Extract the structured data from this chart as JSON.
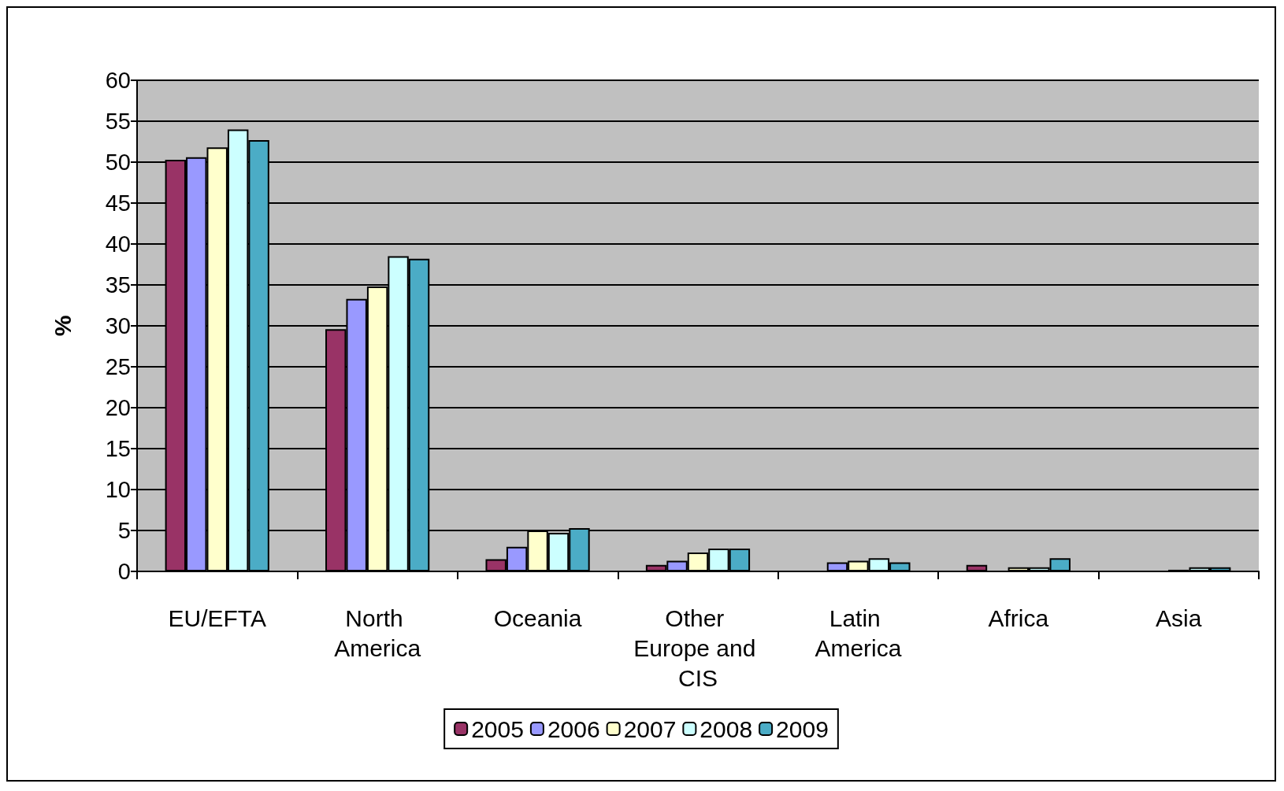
{
  "chart_data": {
    "type": "bar",
    "ylabel": "%",
    "categories": [
      "EU/EFTA",
      "North America",
      "Oceania",
      "Other Europe and CIS",
      "Latin America",
      "Africa",
      "Asia"
    ],
    "series": [
      {
        "name": "2005",
        "color": "#993366",
        "values": [
          50.3,
          29.6,
          1.5,
          0.8,
          0,
          0.8,
          0
        ]
      },
      {
        "name": "2006",
        "color": "#9999ff",
        "values": [
          50.6,
          33.3,
          3.0,
          1.3,
          1.1,
          0,
          0
        ]
      },
      {
        "name": "2007",
        "color": "#ffffcc",
        "values": [
          51.8,
          34.8,
          5.0,
          2.3,
          1.3,
          0.5,
          0.2
        ]
      },
      {
        "name": "2008",
        "color": "#ccffff",
        "values": [
          54.0,
          38.5,
          4.7,
          2.8,
          1.6,
          0.5,
          0.5
        ]
      },
      {
        "name": "2009",
        "color": "#4bacc6",
        "values": [
          52.7,
          38.2,
          5.3,
          2.8,
          1.1,
          1.6,
          0.5
        ]
      }
    ],
    "ylim": [
      0,
      60
    ],
    "yticks": [
      0,
      5,
      10,
      15,
      20,
      25,
      30,
      35,
      40,
      45,
      50,
      55,
      60
    ],
    "grid": "y",
    "legend": "bottom"
  }
}
